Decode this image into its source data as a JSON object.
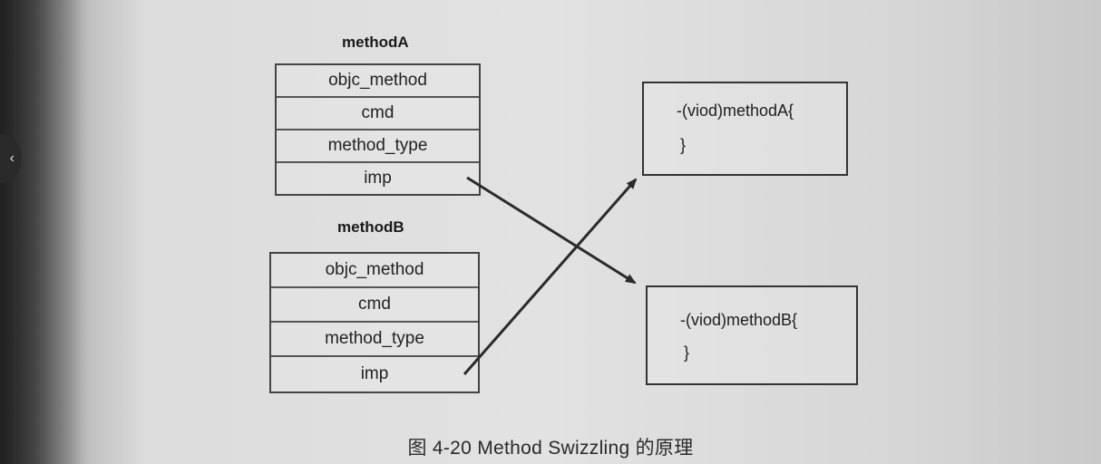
{
  "method_a": {
    "title": "methodA",
    "fields": [
      "objc_method",
      "cmd",
      "method_type",
      "imp"
    ]
  },
  "method_b": {
    "title": "methodB",
    "fields": [
      "objc_method",
      "cmd",
      "method_type",
      "imp"
    ]
  },
  "impl_a": {
    "signature": "-(viod)methodA{",
    "close": "}"
  },
  "impl_b": {
    "signature": "-(viod)methodB{",
    "close": "}"
  },
  "caption": "图 4-20   Method Swizzling 的原理",
  "nav": {
    "back_symbol": "‹"
  },
  "colors": {
    "line": "#2b2b2b",
    "paper": "#e2e2e2"
  }
}
